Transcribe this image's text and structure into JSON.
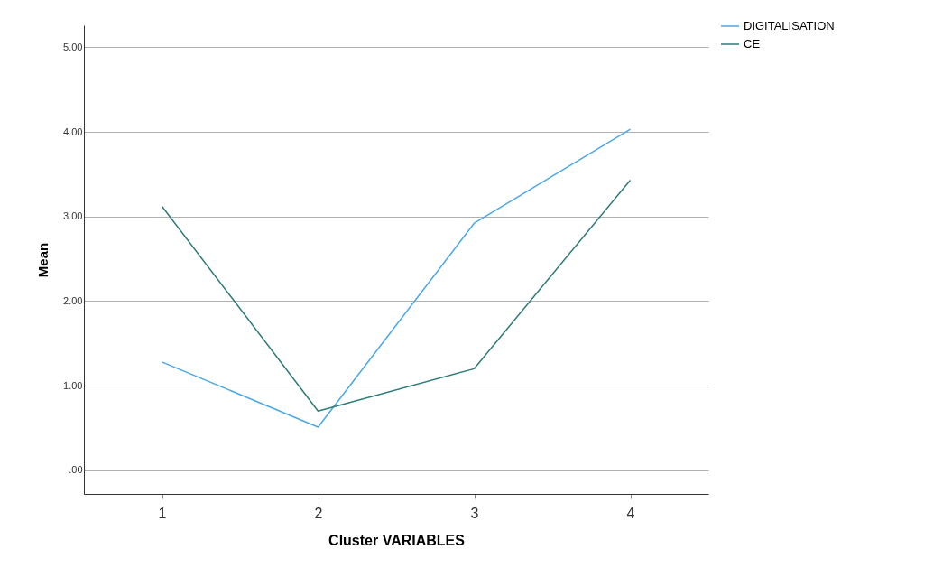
{
  "chart_data": {
    "type": "line",
    "xlabel": "Cluster VARIABLES",
    "ylabel": "Mean",
    "categories": [
      "1",
      "2",
      "3",
      "4"
    ],
    "series": [
      {
        "name": "DIGITALISATION",
        "color": "#4aa8e8",
        "values": [
          1.28,
          0.51,
          2.92,
          4.03
        ]
      },
      {
        "name": "CE",
        "color": "#2e7b78",
        "values": [
          3.12,
          0.7,
          1.2,
          3.43
        ]
      }
    ],
    "ylim": [
      -0.28,
      5.26
    ],
    "yticks": [
      {
        "value": 0,
        "label": ".00"
      },
      {
        "value": 1,
        "label": "1.00"
      },
      {
        "value": 2,
        "label": "2.00"
      },
      {
        "value": 3,
        "label": "3.00"
      },
      {
        "value": 4,
        "label": "4.00"
      },
      {
        "value": 5,
        "label": "5.00"
      }
    ],
    "grid": "y",
    "legend": "top right",
    "marker": "none",
    "line_style": "solid"
  }
}
